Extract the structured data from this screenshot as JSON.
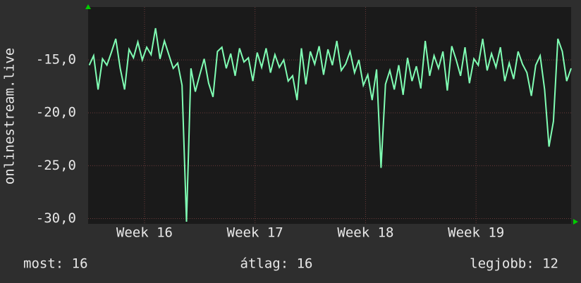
{
  "chart_data": {
    "type": "line",
    "y_label": "onlinestream.live",
    "color": "#80ffb4",
    "grid": true,
    "x": [
      15.5,
      15.54,
      15.58,
      15.62,
      15.66,
      15.7,
      15.74,
      15.78,
      15.82,
      15.86,
      15.9,
      15.94,
      15.98,
      16.02,
      16.06,
      16.1,
      16.14,
      16.18,
      16.22,
      16.26,
      16.3,
      16.34,
      16.38,
      16.42,
      16.46,
      16.5,
      16.54,
      16.58,
      16.62,
      16.66,
      16.7,
      16.74,
      16.78,
      16.82,
      16.86,
      16.9,
      16.94,
      16.98,
      17.02,
      17.06,
      17.1,
      17.14,
      17.18,
      17.22,
      17.26,
      17.3,
      17.34,
      17.38,
      17.42,
      17.46,
      17.5,
      17.54,
      17.58,
      17.62,
      17.66,
      17.7,
      17.74,
      17.78,
      17.82,
      17.86,
      17.9,
      17.94,
      17.98,
      18.02,
      18.06,
      18.1,
      18.14,
      18.18,
      18.22,
      18.26,
      18.3,
      18.34,
      18.38,
      18.42,
      18.46,
      18.5,
      18.54,
      18.58,
      18.62,
      18.66,
      18.7,
      18.74,
      18.78,
      18.82,
      18.86,
      18.9,
      18.94,
      18.98,
      19.02,
      19.06,
      19.1,
      19.14,
      19.18,
      19.22,
      19.26,
      19.3,
      19.34,
      19.38,
      19.42,
      19.46,
      19.5,
      19.54,
      19.58,
      19.62,
      19.66,
      19.7,
      19.74,
      19.78,
      19.82,
      19.86
    ],
    "values": [
      -15.5,
      -14.6,
      -17.8,
      -14.9,
      -15.5,
      -14.3,
      -13.0,
      -15.8,
      -17.8,
      -14.0,
      -14.8,
      -13.3,
      -15.0,
      -13.8,
      -14.5,
      -12.0,
      -14.9,
      -13.2,
      -14.5,
      -15.8,
      -15.3,
      -17.4,
      -30.3,
      -15.8,
      -18.0,
      -16.4,
      -14.9,
      -17.2,
      -18.5,
      -14.2,
      -13.8,
      -15.8,
      -14.4,
      -16.5,
      -13.9,
      -15.2,
      -14.8,
      -17.0,
      -14.3,
      -15.7,
      -13.9,
      -16.2,
      -14.5,
      -15.7,
      -15.0,
      -17.0,
      -16.5,
      -18.8,
      -13.9,
      -17.3,
      -14.2,
      -15.4,
      -13.7,
      -16.4,
      -14.0,
      -15.5,
      -13.2,
      -16.0,
      -15.4,
      -14.2,
      -16.2,
      -15.0,
      -17.4,
      -16.4,
      -18.8,
      -15.9,
      -25.2,
      -17.3,
      -16.0,
      -17.8,
      -15.5,
      -18.3,
      -14.8,
      -17.0,
      -15.6,
      -17.7,
      -13.2,
      -16.5,
      -14.6,
      -15.8,
      -14.2,
      -17.9,
      -13.7,
      -15.0,
      -16.5,
      -13.8,
      -17.2,
      -14.9,
      -15.5,
      -13.0,
      -16.0,
      -14.4,
      -15.7,
      -13.8,
      -17.0,
      -15.3,
      -16.8,
      -14.2,
      -15.4,
      -16.2,
      -18.4,
      -15.5,
      -14.6,
      -17.8,
      -23.2,
      -20.8,
      -13.0,
      -14.2,
      -17.0,
      -15.8
    ],
    "xlim": [
      15.49,
      19.86
    ],
    "xticks": [
      {
        "value": 16,
        "label": "Week 16"
      },
      {
        "value": 17,
        "label": "Week 17"
      },
      {
        "value": 18,
        "label": "Week 18"
      },
      {
        "value": 19,
        "label": "Week 19"
      }
    ],
    "ylim": [
      -30.5,
      -10
    ],
    "yticks": [
      {
        "value": -30,
        "label": "-30,0"
      },
      {
        "value": -25,
        "label": "-25,0"
      },
      {
        "value": -20,
        "label": "-20,0"
      },
      {
        "value": -15,
        "label": "-15,0"
      }
    ],
    "footer": [
      "most: 16",
      "átlag: 16",
      "legjobb: 12"
    ]
  }
}
